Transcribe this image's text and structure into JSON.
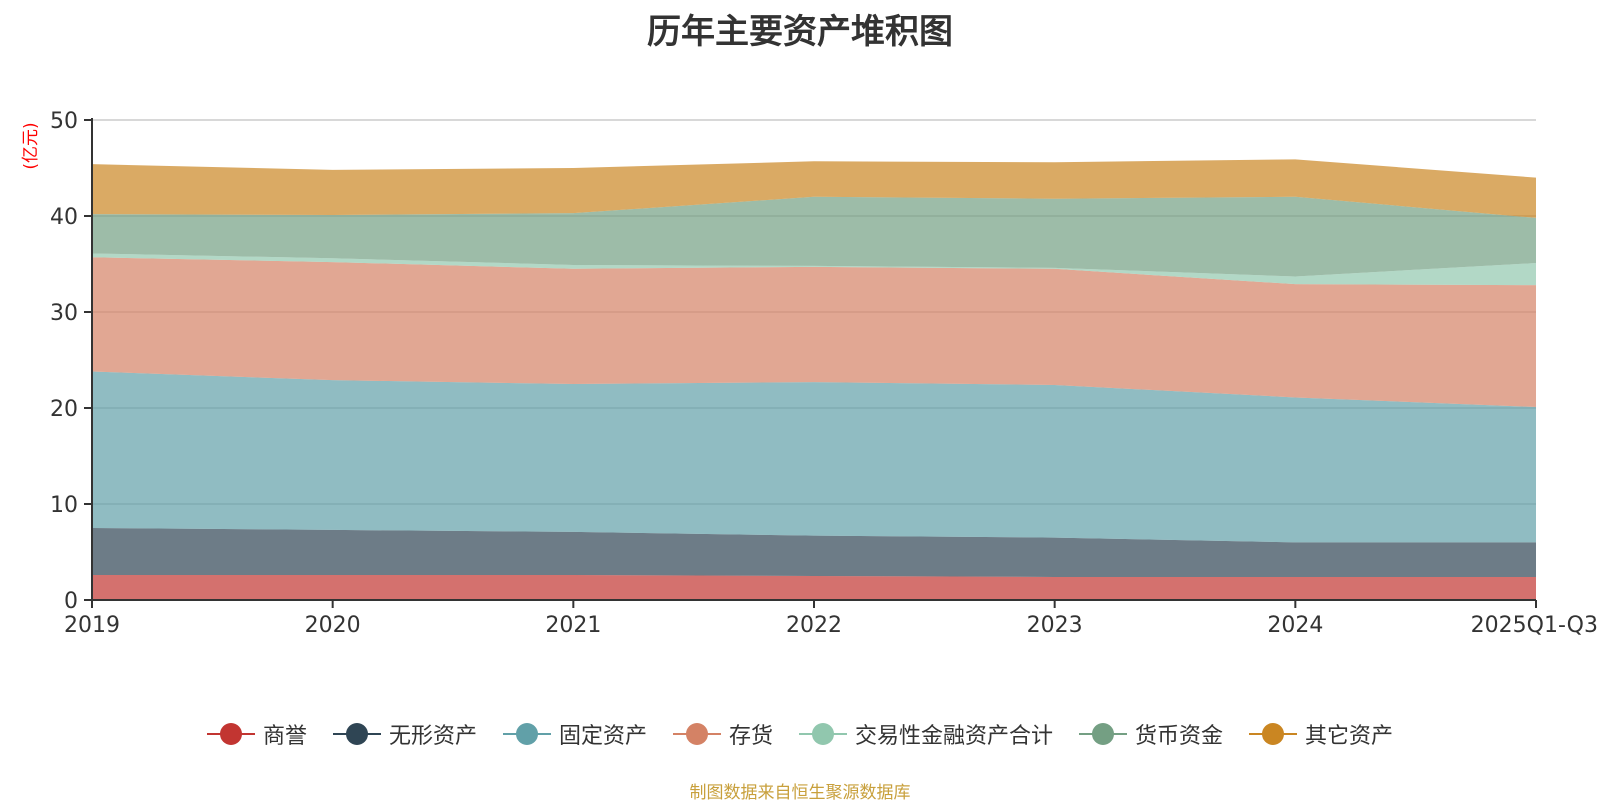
{
  "chart_data": {
    "type": "area",
    "stacked": true,
    "title": "历年主要资产堆积图",
    "ylabel": "(亿元)",
    "xlabel": "",
    "ylim": [
      0,
      50
    ],
    "yticks": [
      0,
      10,
      20,
      30,
      40,
      50
    ],
    "categories": [
      "2019",
      "2020",
      "2021",
      "2022",
      "2023",
      "2024",
      "2025Q1-Q3"
    ],
    "grid": true,
    "legend_position": "bottom",
    "series": [
      {
        "name": "商誉",
        "color": "#c23531",
        "values": [
          2.6,
          2.6,
          2.6,
          2.5,
          2.4,
          2.4,
          2.4
        ]
      },
      {
        "name": "无形资产",
        "color": "#2f4554",
        "values": [
          4.9,
          4.7,
          4.5,
          4.2,
          4.1,
          3.6,
          3.6
        ]
      },
      {
        "name": "固定资产",
        "color": "#61a0a8",
        "values": [
          16.3,
          15.6,
          15.4,
          16.0,
          15.9,
          15.1,
          14.1
        ]
      },
      {
        "name": "存货",
        "color": "#d48265",
        "values": [
          11.9,
          12.3,
          12.0,
          12.0,
          12.1,
          11.8,
          12.7
        ]
      },
      {
        "name": "交易性金融资产合计",
        "color": "#91c7ae",
        "values": [
          0.4,
          0.4,
          0.4,
          0.1,
          0.1,
          0.8,
          2.3
        ]
      },
      {
        "name": "货币资金",
        "color": "#749f83",
        "values": [
          4.1,
          4.5,
          5.4,
          7.2,
          7.2,
          8.3,
          4.7
        ]
      },
      {
        "name": "其它资产",
        "color": "#ca8622",
        "values": [
          5.2,
          4.7,
          4.7,
          3.7,
          3.8,
          3.9,
          4.2
        ]
      }
    ],
    "source": "制图数据来自恒生聚源数据库"
  },
  "colors": {
    "title": "#333333",
    "ylabel": "#ff0000",
    "axis": "#333333",
    "grid": "#cccccc",
    "source": "#c8a03c"
  }
}
